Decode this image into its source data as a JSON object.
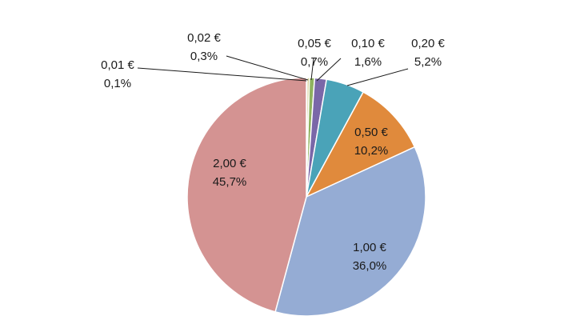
{
  "chart_data": {
    "type": "pie",
    "slices": [
      {
        "label": "0,01 €",
        "value": 0.1,
        "value_label": "0,1%",
        "color": "#8B4513"
      },
      {
        "label": "0,02 €",
        "value": 0.3,
        "value_label": "0,3%",
        "color": "#c9c57f"
      },
      {
        "label": "0,05 €",
        "value": 0.7,
        "value_label": "0,7%",
        "color": "#8fb25f"
      },
      {
        "label": "0,10 €",
        "value": 1.6,
        "value_label": "1,6%",
        "color": "#7a67a8"
      },
      {
        "label": "0,20 €",
        "value": 5.2,
        "value_label": "5,2%",
        "color": "#4aa3b8"
      },
      {
        "label": "0,50 €",
        "value": 10.2,
        "value_label": "10,2%",
        "color": "#e08a3c"
      },
      {
        "label": "1,00 €",
        "value": 36.0,
        "value_label": "36,0%",
        "color": "#95acd4"
      },
      {
        "label": "2,00 €",
        "value": 45.7,
        "value_label": "45,7%",
        "color": "#d49392"
      }
    ],
    "start_angle": "12 o'clock",
    "direction": "clockwise",
    "legend": "none"
  }
}
